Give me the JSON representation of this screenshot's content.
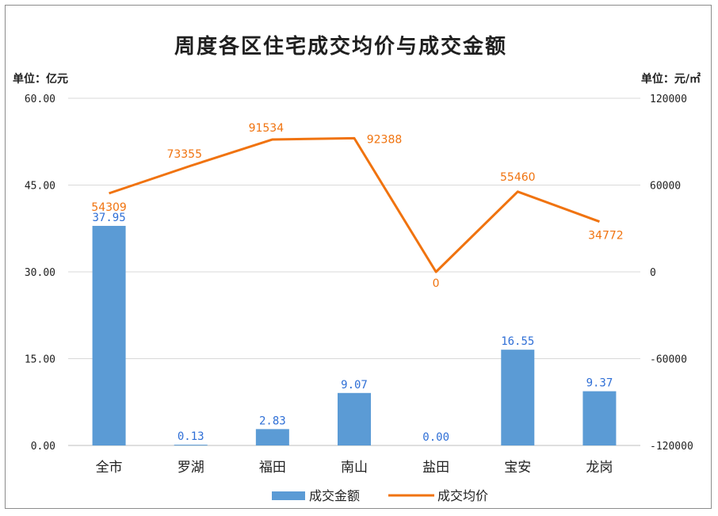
{
  "chart_data": {
    "type": "bar+line",
    "title": "周度各区住宅成交均价与成交金额",
    "y_left_unit": "单位：亿元",
    "y_right_unit": "单位：元/㎡",
    "categories": [
      "全市",
      "罗湖",
      "福田",
      "南山",
      "盐田",
      "宝安",
      "龙岗"
    ],
    "y_left": {
      "min": 0,
      "max": 60,
      "ticks": [
        "0.00",
        "15.00",
        "30.00",
        "45.00",
        "60.00"
      ],
      "tick_values": [
        0,
        15,
        30,
        45,
        60
      ]
    },
    "y_right": {
      "min": -120000,
      "max": 120000,
      "ticks": [
        "-120000",
        "-60000",
        "0",
        "60000",
        "120000"
      ],
      "tick_values": [
        -120000,
        -60000,
        0,
        60000,
        120000
      ]
    },
    "series": [
      {
        "name": "成交金额",
        "type": "bar",
        "axis": "left",
        "color": "#5b9bd5",
        "values": [
          37.95,
          0.13,
          2.83,
          9.07,
          0.0,
          16.55,
          9.37
        ],
        "labels": [
          "37.95",
          "0.13",
          "2.83",
          "9.07",
          "0.00",
          "16.55",
          "9.37"
        ]
      },
      {
        "name": "成交均价",
        "type": "line",
        "axis": "right",
        "color": "#f0730f",
        "values": [
          54309,
          73355,
          91534,
          92388,
          0,
          55460,
          34772
        ],
        "labels": [
          "54309",
          "73355",
          "91534",
          "92388",
          "0",
          "55460",
          "34772"
        ]
      }
    ],
    "grid": true,
    "legend_position": "bottom"
  }
}
